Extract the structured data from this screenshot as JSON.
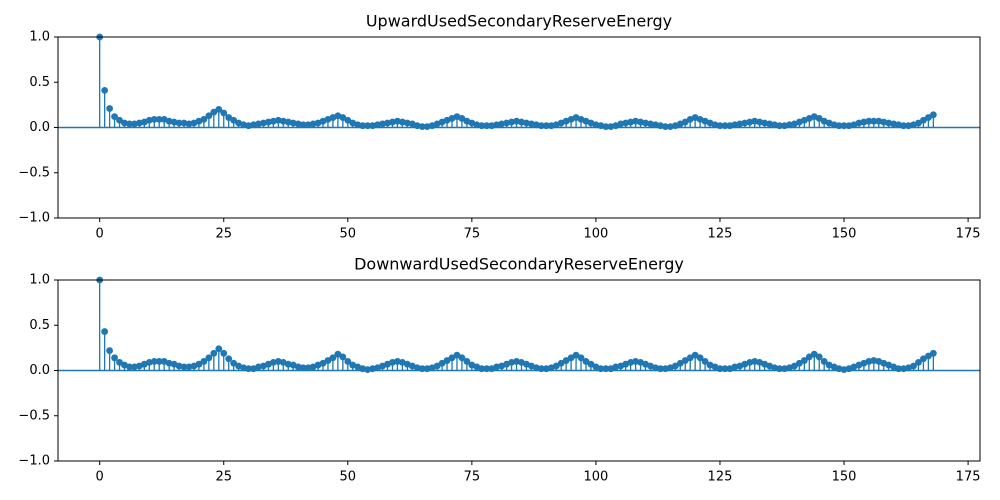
{
  "chart_data": [
    {
      "type": "stem",
      "title": "UpwardUsedSecondaryReserveEnergy",
      "color": "#1f77b4",
      "x": [
        0,
        1,
        2,
        3,
        4,
        5,
        6,
        7,
        8,
        9,
        10,
        11,
        12,
        13,
        14,
        15,
        16,
        17,
        18,
        19,
        20,
        21,
        22,
        23,
        24,
        25,
        26,
        27,
        28,
        29,
        30,
        31,
        32,
        33,
        34,
        35,
        36,
        37,
        38,
        39,
        40,
        41,
        42,
        43,
        44,
        45,
        46,
        47,
        48,
        49,
        50,
        51,
        52,
        53,
        54,
        55,
        56,
        57,
        58,
        59,
        60,
        61,
        62,
        63,
        64,
        65,
        66,
        67,
        68,
        69,
        70,
        71,
        72,
        73,
        74,
        75,
        76,
        77,
        78,
        79,
        80,
        81,
        82,
        83,
        84,
        85,
        86,
        87,
        88,
        89,
        90,
        91,
        92,
        93,
        94,
        95,
        96,
        97,
        98,
        99,
        100,
        101,
        102,
        103,
        104,
        105,
        106,
        107,
        108,
        109,
        110,
        111,
        112,
        113,
        114,
        115,
        116,
        117,
        118,
        119,
        120,
        121,
        122,
        123,
        124,
        125,
        126,
        127,
        128,
        129,
        130,
        131,
        132,
        133,
        134,
        135,
        136,
        137,
        138,
        139,
        140,
        141,
        142,
        143,
        144,
        145,
        146,
        147,
        148,
        149,
        150,
        151,
        152,
        153,
        154,
        155,
        156,
        157,
        158,
        159,
        160,
        161,
        162,
        163,
        164,
        165,
        166,
        167,
        168
      ],
      "values": [
        1.0,
        0.41,
        0.21,
        0.12,
        0.08,
        0.05,
        0.04,
        0.04,
        0.05,
        0.06,
        0.08,
        0.09,
        0.09,
        0.09,
        0.07,
        0.06,
        0.05,
        0.05,
        0.04,
        0.05,
        0.07,
        0.09,
        0.13,
        0.17,
        0.2,
        0.16,
        0.11,
        0.08,
        0.05,
        0.03,
        0.02,
        0.03,
        0.04,
        0.05,
        0.06,
        0.07,
        0.08,
        0.07,
        0.06,
        0.05,
        0.04,
        0.03,
        0.03,
        0.04,
        0.05,
        0.07,
        0.09,
        0.11,
        0.13,
        0.11,
        0.08,
        0.05,
        0.03,
        0.02,
        0.02,
        0.02,
        0.03,
        0.04,
        0.05,
        0.06,
        0.07,
        0.06,
        0.05,
        0.04,
        0.02,
        0.01,
        0.01,
        0.02,
        0.04,
        0.06,
        0.08,
        0.1,
        0.12,
        0.1,
        0.07,
        0.05,
        0.03,
        0.02,
        0.02,
        0.02,
        0.03,
        0.04,
        0.05,
        0.06,
        0.07,
        0.06,
        0.05,
        0.04,
        0.03,
        0.02,
        0.02,
        0.02,
        0.03,
        0.05,
        0.07,
        0.09,
        0.11,
        0.09,
        0.07,
        0.05,
        0.03,
        0.02,
        0.01,
        0.01,
        0.02,
        0.04,
        0.05,
        0.06,
        0.07,
        0.06,
        0.05,
        0.04,
        0.03,
        0.02,
        0.01,
        0.01,
        0.02,
        0.04,
        0.06,
        0.09,
        0.11,
        0.09,
        0.07,
        0.05,
        0.03,
        0.02,
        0.02,
        0.02,
        0.03,
        0.04,
        0.05,
        0.06,
        0.07,
        0.06,
        0.05,
        0.04,
        0.03,
        0.02,
        0.02,
        0.03,
        0.04,
        0.06,
        0.08,
        0.1,
        0.12,
        0.1,
        0.07,
        0.05,
        0.03,
        0.02,
        0.02,
        0.02,
        0.03,
        0.05,
        0.06,
        0.07,
        0.07,
        0.07,
        0.06,
        0.05,
        0.04,
        0.03,
        0.02,
        0.02,
        0.03,
        0.05,
        0.08,
        0.11,
        0.14
      ],
      "xlim": [
        -8.4,
        177.4
      ],
      "xticks": [
        0,
        25,
        50,
        75,
        100,
        125,
        150,
        175
      ],
      "ylim": [
        -1,
        1
      ],
      "yticks": [
        {
          "value": -1,
          "label": "−1.0"
        },
        {
          "value": -0.5,
          "label": "−0.5"
        },
        {
          "value": 0,
          "label": "0.0"
        },
        {
          "value": 0.5,
          "label": "0.5"
        },
        {
          "value": 1,
          "label": "1.0"
        }
      ]
    },
    {
      "type": "stem",
      "title": "DownwardUsedSecondaryReserveEnergy",
      "color": "#1f77b4",
      "x": [
        0,
        1,
        2,
        3,
        4,
        5,
        6,
        7,
        8,
        9,
        10,
        11,
        12,
        13,
        14,
        15,
        16,
        17,
        18,
        19,
        20,
        21,
        22,
        23,
        24,
        25,
        26,
        27,
        28,
        29,
        30,
        31,
        32,
        33,
        34,
        35,
        36,
        37,
        38,
        39,
        40,
        41,
        42,
        43,
        44,
        45,
        46,
        47,
        48,
        49,
        50,
        51,
        52,
        53,
        54,
        55,
        56,
        57,
        58,
        59,
        60,
        61,
        62,
        63,
        64,
        65,
        66,
        67,
        68,
        69,
        70,
        71,
        72,
        73,
        74,
        75,
        76,
        77,
        78,
        79,
        80,
        81,
        82,
        83,
        84,
        85,
        86,
        87,
        88,
        89,
        90,
        91,
        92,
        93,
        94,
        95,
        96,
        97,
        98,
        99,
        100,
        101,
        102,
        103,
        104,
        105,
        106,
        107,
        108,
        109,
        110,
        111,
        112,
        113,
        114,
        115,
        116,
        117,
        118,
        119,
        120,
        121,
        122,
        123,
        124,
        125,
        126,
        127,
        128,
        129,
        130,
        131,
        132,
        133,
        134,
        135,
        136,
        137,
        138,
        139,
        140,
        141,
        142,
        143,
        144,
        145,
        146,
        147,
        148,
        149,
        150,
        151,
        152,
        153,
        154,
        155,
        156,
        157,
        158,
        159,
        160,
        161,
        162,
        163,
        164,
        165,
        166,
        167,
        168
      ],
      "values": [
        1.0,
        0.43,
        0.22,
        0.14,
        0.09,
        0.06,
        0.04,
        0.04,
        0.05,
        0.07,
        0.09,
        0.1,
        0.1,
        0.1,
        0.08,
        0.07,
        0.05,
        0.04,
        0.04,
        0.05,
        0.07,
        0.1,
        0.14,
        0.19,
        0.24,
        0.19,
        0.13,
        0.08,
        0.05,
        0.03,
        0.02,
        0.02,
        0.04,
        0.05,
        0.07,
        0.09,
        0.1,
        0.09,
        0.07,
        0.06,
        0.04,
        0.03,
        0.03,
        0.04,
        0.06,
        0.08,
        0.11,
        0.14,
        0.18,
        0.15,
        0.1,
        0.06,
        0.04,
        0.02,
        0.01,
        0.02,
        0.03,
        0.05,
        0.07,
        0.09,
        0.1,
        0.09,
        0.07,
        0.05,
        0.03,
        0.02,
        0.02,
        0.03,
        0.05,
        0.08,
        0.11,
        0.14,
        0.17,
        0.14,
        0.1,
        0.06,
        0.04,
        0.02,
        0.02,
        0.02,
        0.04,
        0.05,
        0.07,
        0.09,
        0.1,
        0.09,
        0.07,
        0.05,
        0.03,
        0.02,
        0.02,
        0.03,
        0.05,
        0.08,
        0.11,
        0.14,
        0.17,
        0.14,
        0.1,
        0.07,
        0.04,
        0.02,
        0.02,
        0.02,
        0.04,
        0.05,
        0.07,
        0.09,
        0.1,
        0.09,
        0.07,
        0.05,
        0.03,
        0.02,
        0.02,
        0.03,
        0.05,
        0.08,
        0.11,
        0.14,
        0.17,
        0.14,
        0.1,
        0.06,
        0.04,
        0.02,
        0.02,
        0.02,
        0.04,
        0.05,
        0.07,
        0.09,
        0.1,
        0.09,
        0.07,
        0.05,
        0.03,
        0.02,
        0.02,
        0.03,
        0.05,
        0.08,
        0.11,
        0.15,
        0.18,
        0.15,
        0.1,
        0.06,
        0.04,
        0.02,
        0.01,
        0.02,
        0.04,
        0.06,
        0.08,
        0.1,
        0.11,
        0.1,
        0.08,
        0.06,
        0.04,
        0.02,
        0.02,
        0.03,
        0.05,
        0.09,
        0.13,
        0.16,
        0.19
      ],
      "xlim": [
        -8.4,
        177.4
      ],
      "xticks": [
        0,
        25,
        50,
        75,
        100,
        125,
        150,
        175
      ],
      "ylim": [
        -1,
        1
      ],
      "yticks": [
        {
          "value": -1,
          "label": "−1.0"
        },
        {
          "value": -0.5,
          "label": "−0.5"
        },
        {
          "value": 0,
          "label": "0.0"
        },
        {
          "value": 0.5,
          "label": "0.5"
        },
        {
          "value": 1,
          "label": "1.0"
        }
      ]
    }
  ]
}
